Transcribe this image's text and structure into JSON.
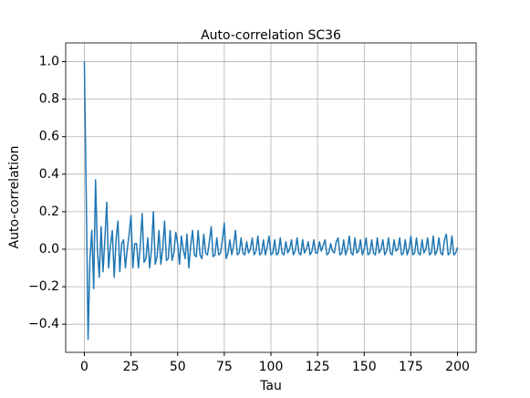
{
  "chart_data": {
    "type": "line",
    "title": "Auto-correlation SC36",
    "xlabel": "Tau",
    "ylabel": "Auto-correlation",
    "x": [
      0,
      1,
      2,
      3,
      4,
      5,
      6,
      7,
      8,
      9,
      10,
      11,
      12,
      13,
      14,
      15,
      16,
      17,
      18,
      19,
      20,
      21,
      22,
      23,
      24,
      25,
      26,
      27,
      28,
      29,
      30,
      31,
      32,
      33,
      34,
      35,
      36,
      37,
      38,
      39,
      40,
      41,
      42,
      43,
      44,
      45,
      46,
      47,
      48,
      49,
      50,
      51,
      52,
      53,
      54,
      55,
      56,
      57,
      58,
      59,
      60,
      61,
      62,
      63,
      64,
      65,
      66,
      67,
      68,
      69,
      70,
      71,
      72,
      73,
      74,
      75,
      76,
      77,
      78,
      79,
      80,
      81,
      82,
      83,
      84,
      85,
      86,
      87,
      88,
      89,
      90,
      91,
      92,
      93,
      94,
      95,
      96,
      97,
      98,
      99,
      100,
      101,
      102,
      103,
      104,
      105,
      106,
      107,
      108,
      109,
      110,
      111,
      112,
      113,
      114,
      115,
      116,
      117,
      118,
      119,
      120,
      121,
      122,
      123,
      124,
      125,
      126,
      127,
      128,
      129,
      130,
      131,
      132,
      133,
      134,
      135,
      136,
      137,
      138,
      139,
      140,
      141,
      142,
      143,
      144,
      145,
      146,
      147,
      148,
      149,
      150,
      151,
      152,
      153,
      154,
      155,
      156,
      157,
      158,
      159,
      160,
      161,
      162,
      163,
      164,
      165,
      166,
      167,
      168,
      169,
      170,
      171,
      172,
      173,
      174,
      175,
      176,
      177,
      178,
      179,
      180,
      181,
      182,
      183,
      184,
      185,
      186,
      187,
      188,
      189,
      190,
      191,
      192,
      193,
      194,
      195,
      196,
      197,
      198,
      199,
      200
    ],
    "series": [
      {
        "name": "SC36",
        "color": "#1f77b4",
        "values": [
          1.0,
          0.3,
          -0.48,
          -0.05,
          0.1,
          -0.21,
          0.37,
          0.0,
          -0.15,
          0.12,
          -0.12,
          0.05,
          0.25,
          -0.1,
          0.02,
          0.1,
          -0.15,
          0.05,
          0.15,
          -0.12,
          0.03,
          0.05,
          -0.1,
          0.0,
          0.08,
          0.18,
          -0.1,
          0.03,
          0.03,
          -0.1,
          0.02,
          0.19,
          -0.07,
          -0.05,
          0.06,
          -0.1,
          0.0,
          0.2,
          -0.08,
          -0.04,
          0.1,
          -0.08,
          0.0,
          0.15,
          -0.06,
          -0.05,
          0.1,
          -0.06,
          -0.02,
          0.09,
          0.03,
          -0.08,
          0.07,
          0.0,
          -0.05,
          0.08,
          -0.1,
          0.02,
          0.1,
          -0.03,
          -0.04,
          0.1,
          -0.03,
          -0.05,
          0.08,
          -0.02,
          -0.03,
          0.04,
          0.12,
          -0.04,
          -0.03,
          0.06,
          -0.03,
          -0.02,
          0.05,
          0.14,
          -0.05,
          -0.02,
          0.05,
          -0.03,
          0.02,
          0.1,
          -0.03,
          -0.02,
          0.06,
          -0.02,
          -0.03,
          0.04,
          -0.02,
          0.0,
          0.06,
          -0.03,
          -0.01,
          0.07,
          -0.03,
          -0.02,
          0.05,
          -0.03,
          0.01,
          0.07,
          -0.03,
          -0.02,
          0.05,
          -0.03,
          -0.02,
          0.06,
          -0.02,
          -0.03,
          0.04,
          -0.02,
          0.0,
          0.05,
          -0.03,
          -0.01,
          0.06,
          -0.02,
          -0.03,
          0.05,
          -0.02,
          0.0,
          0.04,
          -0.03,
          -0.01,
          0.05,
          -0.02,
          -0.02,
          0.04,
          -0.01,
          0.02,
          0.05,
          -0.03,
          -0.02,
          0.03,
          -0.01,
          -0.02,
          0.04,
          0.06,
          -0.03,
          -0.02,
          0.05,
          -0.03,
          0.0,
          0.07,
          -0.02,
          -0.03,
          0.06,
          -0.02,
          -0.01,
          0.05,
          -0.03,
          0.0,
          0.06,
          -0.03,
          -0.02,
          0.05,
          -0.02,
          -0.03,
          0.06,
          -0.02,
          0.0,
          0.05,
          -0.03,
          -0.01,
          0.06,
          -0.02,
          -0.03,
          0.05,
          -0.01,
          0.0,
          0.06,
          -0.03,
          -0.02,
          0.05,
          -0.03,
          0.0,
          0.07,
          -0.03,
          -0.02,
          0.06,
          -0.02,
          -0.03,
          0.05,
          -0.02,
          0.0,
          0.06,
          -0.03,
          -0.02,
          0.07,
          -0.03,
          -0.01,
          0.06,
          -0.02,
          -0.03,
          0.05,
          0.08,
          -0.03,
          -0.02,
          0.07,
          -0.03,
          -0.02,
          0.01
        ]
      }
    ],
    "xlim": [
      -10,
      210
    ],
    "ylim": [
      -0.55,
      1.1
    ],
    "xticks": [
      0,
      25,
      50,
      75,
      100,
      125,
      150,
      175,
      200
    ],
    "yticks": [
      {
        "value": -0.4,
        "label": "−0.4"
      },
      {
        "value": -0.2,
        "label": "−0.2"
      },
      {
        "value": 0,
        "label": "0.0"
      },
      {
        "value": 0.2,
        "label": "0.2"
      },
      {
        "value": 0.4,
        "label": "0.4"
      },
      {
        "value": 0.6,
        "label": "0.6"
      },
      {
        "value": 0.8,
        "label": "0.8"
      },
      {
        "value": 1,
        "label": "1.0"
      }
    ],
    "grid": true
  }
}
